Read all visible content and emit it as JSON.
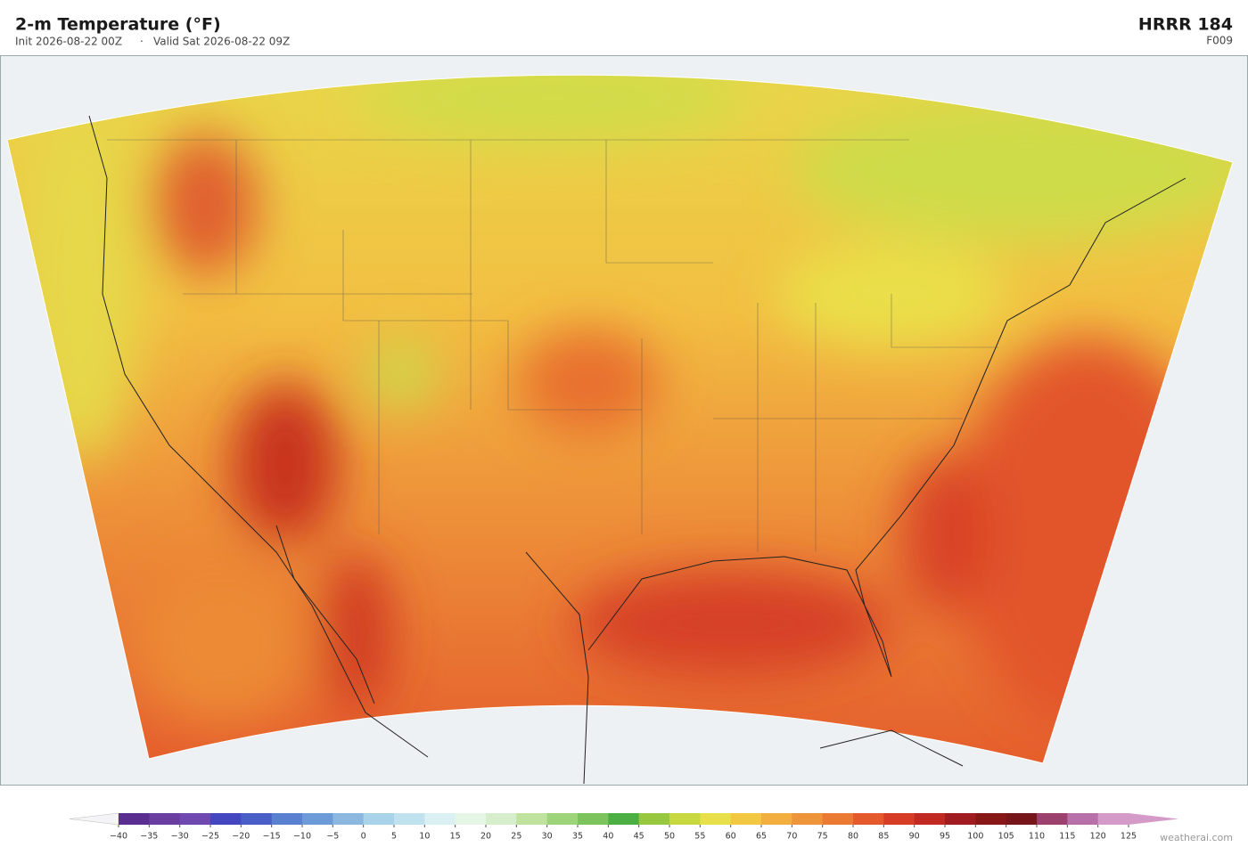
{
  "header": {
    "title": "2-m Temperature  (°F)",
    "init": "Init 2026-08-22 00Z",
    "valid": "Valid Sat 2026-08-22 09Z",
    "model": "HRRR  184",
    "forecast_hour": "F009"
  },
  "colorbar": {
    "ticks": [
      {
        "value": -40,
        "label": "−40"
      },
      {
        "value": -35,
        "label": "−35"
      },
      {
        "value": -30,
        "label": "−30"
      },
      {
        "value": -25,
        "label": "−25"
      },
      {
        "value": -20,
        "label": "−20"
      },
      {
        "value": -15,
        "label": "−15"
      },
      {
        "value": -10,
        "label": "−10"
      },
      {
        "value": -5,
        "label": "−5"
      },
      0,
      5,
      10,
      15,
      20,
      25,
      30,
      35,
      40,
      45,
      50,
      55,
      60,
      65,
      70,
      75,
      80,
      85,
      90,
      95,
      100,
      105,
      110,
      115,
      120,
      125
    ],
    "colors": [
      "#5a2d91",
      "#6a3da0",
      "#6f48b0",
      "#4446c0",
      "#4a5ec8",
      "#5a80d0",
      "#6d9bd8",
      "#8cb8e0",
      "#a9d3e8",
      "#c0e2ee",
      "#daf0f2",
      "#e6f6e6",
      "#d6eecc",
      "#bfe39e",
      "#9dd47a",
      "#7cc35e",
      "#4caf44",
      "#97c840",
      "#c8d840",
      "#e8e04a",
      "#f2c842",
      "#f2ae3e",
      "#ee943a",
      "#eb7a35",
      "#e45a2c",
      "#d63c26",
      "#c02a22",
      "#a01c20",
      "#881818",
      "#76161a",
      "#9c406e",
      "#b870a8",
      "#d49ac8"
    ],
    "under_color": "#f4f4f6",
    "over_color": "#d49ac8"
  },
  "credit": "weatherai.com"
}
